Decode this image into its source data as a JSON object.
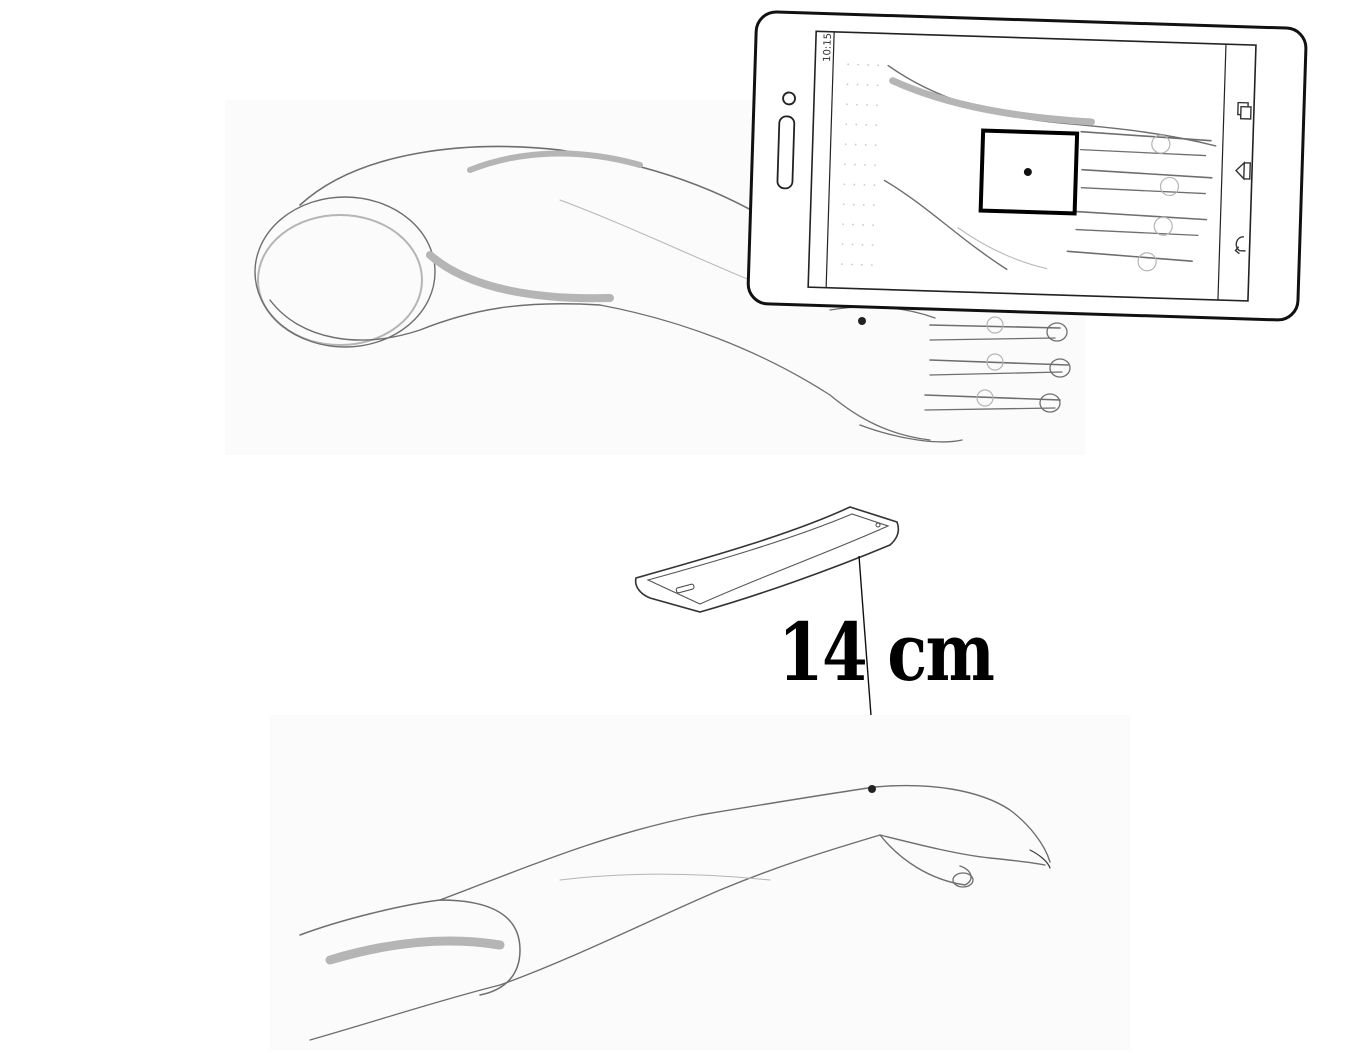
{
  "measurement": {
    "distance_label": "14 cm"
  },
  "phone_screen": {
    "status_time": "10:15"
  },
  "nav_icons": [
    "recent-apps-icon",
    "home-icon",
    "back-icon"
  ],
  "colors": {
    "sketch": "#6e6e6e",
    "ink": "#000000"
  }
}
